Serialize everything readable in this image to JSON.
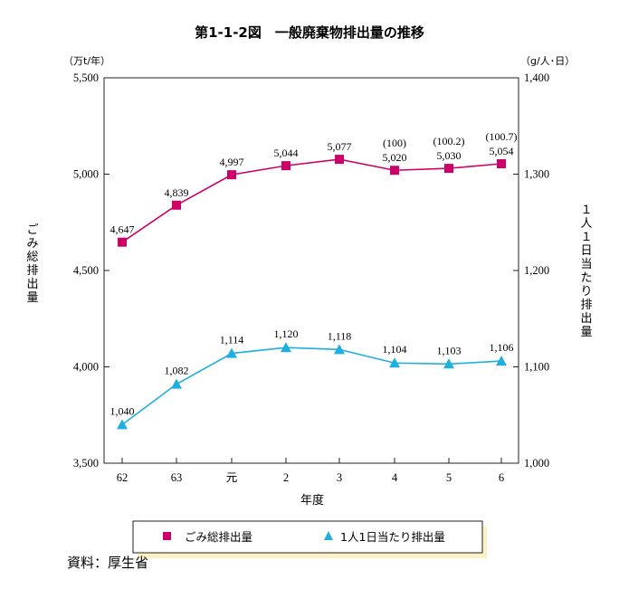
{
  "colors": {
    "series_total": "#cc0066",
    "series_per_capita": "#1eaee0",
    "legend_shadow": "#fbf2c6",
    "axis": "#222222"
  },
  "chart_data": {
    "type": "line",
    "title": "第1-1-2図　一般廃棄物排出量の推移",
    "xlabel": "年度",
    "categories": [
      "62",
      "63",
      "元",
      "2",
      "3",
      "4",
      "5",
      "6"
    ],
    "y_left": {
      "unit": "（万t/年）",
      "label": "ごみ総排出量",
      "range": [
        3500,
        5500
      ],
      "ticks": [
        "3,500",
        "4,000",
        "4,500",
        "5,000",
        "5,500"
      ],
      "tick_values": [
        3500,
        4000,
        4500,
        5000,
        5500
      ]
    },
    "y_right": {
      "unit": "（g/人･日）",
      "label": "１人１日当たり排出量",
      "range": [
        1000,
        1400
      ],
      "ticks": [
        "1,000",
        "1,100",
        "1,200",
        "1,300",
        "1,400"
      ],
      "tick_values": [
        1000,
        1100,
        1200,
        1300,
        1400
      ]
    },
    "series": [
      {
        "name": "ごみ総排出量",
        "axis": "left",
        "marker": "square",
        "values": [
          4647,
          4839,
          4997,
          5044,
          5077,
          5020,
          5030,
          5054
        ],
        "labels": [
          "4,647",
          "4,839",
          "4,997",
          "5,044",
          "5,077",
          "5,020",
          "5,030",
          "5,054"
        ],
        "notes": [
          "",
          "",
          "",
          "",
          "",
          "(100)",
          "(100.2)",
          "(100.7)"
        ]
      },
      {
        "name": "1人1日当たり排出量",
        "axis": "right",
        "marker": "triangle",
        "values": [
          1040,
          1082,
          1114,
          1120,
          1118,
          1104,
          1103,
          1106
        ],
        "labels": [
          "1,040",
          "1,082",
          "1,114",
          "1,120",
          "1,118",
          "1,104",
          "1,103",
          "1,106"
        ]
      }
    ],
    "legend": {
      "placement": "bottom",
      "items": [
        "ごみ総排出量",
        "1人1日当たり排出量"
      ]
    },
    "grid": false
  },
  "source": "資料：厚生省"
}
